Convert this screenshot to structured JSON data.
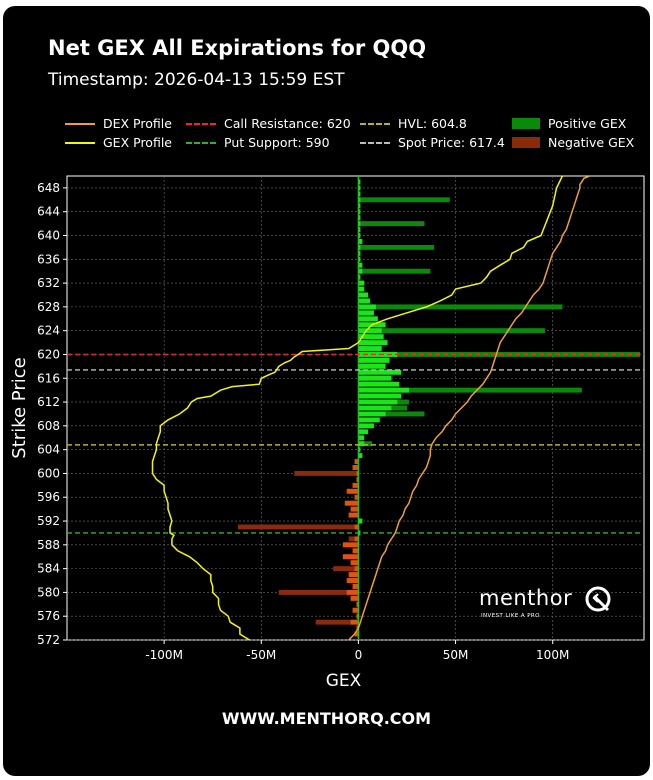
{
  "title": "Net GEX All Expirations for QQQ",
  "subtitle": "Timestamp: 2026-04-13 15:59 EST",
  "footer": "WWW.MENTHORQ.COM",
  "logo": {
    "word": "menthor",
    "tagline": "INVEST LIKE A PRO",
    "icon": "q-logo-icon"
  },
  "legend": [
    {
      "label": "DEX Profile",
      "kind": "line",
      "color": "#f0a030"
    },
    {
      "label": "GEX Profile",
      "kind": "line",
      "color": "#f5f50a"
    },
    {
      "label": "Call Resistance: 620",
      "kind": "dash",
      "color": "#ff2020"
    },
    {
      "label": "Put Support: 590",
      "kind": "dash",
      "color": "#2cb52c"
    },
    {
      "label": "HVL: 604.8",
      "kind": "dash",
      "color": "#b5b52a"
    },
    {
      "label": "Spot Price: 617.4",
      "kind": "dash",
      "color": "#bdbdbd"
    },
    {
      "label": "Positive GEX",
      "kind": "box",
      "color": "#0a8a0a"
    },
    {
      "label": "Negative GEX",
      "kind": "box",
      "color": "#8a2a0a"
    }
  ],
  "colors": {
    "positive_total": "#0a8a0a",
    "positive_near": "#19e619",
    "negative_total": "#8b2a0c",
    "negative_near": "#e0520e",
    "dex": "#f0a030",
    "gex": "#f5f50a"
  },
  "chart_data": {
    "type": "bar",
    "orientation": "horizontal",
    "xlabel": "GEX",
    "ylabel": "Strike Price",
    "xlim": [
      -150,
      147
    ],
    "ylim": [
      572,
      650
    ],
    "x_ticks": [
      -100,
      -50,
      0,
      50,
      100
    ],
    "x_tick_labels": [
      "-100M",
      "-50M",
      "0",
      "50M",
      "100M"
    ],
    "y_ticks": [
      572,
      576,
      580,
      584,
      588,
      592,
      596,
      600,
      604,
      608,
      612,
      616,
      620,
      624,
      628,
      632,
      636,
      640,
      644,
      648
    ],
    "grid": true,
    "lines": [
      {
        "label": "Call Resistance: 620",
        "value": 620,
        "color": "#ff2020"
      },
      {
        "label": "Put Support: 590",
        "value": 590,
        "color": "#2cb52c"
      },
      {
        "label": "HVL: 604.8",
        "value": 604.8,
        "color": "#b5b52a"
      },
      {
        "label": "Spot Price: 617.4",
        "value": 617.4,
        "color": "#bdbdbd"
      }
    ],
    "strikes": [
      573,
      574,
      575,
      576,
      577,
      578,
      579,
      580,
      581,
      582,
      583,
      584,
      585,
      586,
      587,
      588,
      589,
      590,
      591,
      592,
      593,
      594,
      595,
      596,
      597,
      598,
      599,
      600,
      601,
      602,
      603,
      604,
      605,
      606,
      607,
      608,
      609,
      610,
      611,
      612,
      613,
      614,
      615,
      616,
      617,
      618,
      619,
      620,
      621,
      622,
      623,
      624,
      625,
      626,
      627,
      628,
      629,
      630,
      631,
      632,
      633,
      634,
      635,
      636,
      637,
      638,
      639,
      640,
      641,
      642,
      643,
      644,
      645,
      646,
      647,
      648,
      649
    ],
    "total_gex": [
      -2,
      -1,
      -22,
      -1,
      -3,
      -1,
      -4,
      -41,
      -3,
      -6,
      -5,
      -13,
      -4,
      -8,
      -3,
      -8,
      -5,
      1,
      -62,
      2,
      -5,
      -4,
      -7,
      -2,
      -6,
      -3,
      -1,
      -33,
      -3,
      -2,
      2,
      1,
      7,
      1,
      3,
      4,
      3,
      34,
      25,
      26,
      5,
      115,
      4,
      5,
      4,
      3,
      2,
      145,
      4,
      5,
      6,
      96,
      5,
      6,
      5,
      105,
      6,
      5,
      3,
      3,
      1,
      37,
      2,
      1,
      1,
      39,
      2,
      1,
      1,
      34,
      1,
      1,
      1,
      47,
      1,
      1,
      1
    ],
    "near_gex": [
      -2,
      -1,
      -4,
      -1,
      -3,
      -1,
      -4,
      -6,
      -3,
      -6,
      -5,
      -2,
      -4,
      -8,
      -3,
      -8,
      -2,
      1,
      -2,
      2,
      -5,
      -4,
      -7,
      -2,
      -6,
      -3,
      -1,
      -1,
      -3,
      -2,
      2,
      1,
      3,
      3,
      5,
      8,
      11,
      14,
      17,
      20,
      22,
      26,
      21,
      17,
      22,
      14,
      16,
      20,
      12,
      15,
      13,
      12,
      14,
      10,
      8,
      9,
      6,
      5,
      3,
      3,
      1,
      2,
      2,
      1,
      1,
      1,
      2,
      1,
      1,
      1,
      1,
      1,
      1,
      1,
      1,
      1,
      1
    ],
    "gex_profile": {
      "x": [
        -56,
        -61,
        -61,
        -66,
        -67,
        -71,
        -72,
        -72,
        -75,
        -75,
        -76,
        -76,
        -80,
        -83,
        -87,
        -93,
        -96,
        -96,
        -95,
        -97,
        -97,
        -96,
        -97,
        -98,
        -98,
        -99,
        -100,
        -100,
        -104,
        -106,
        -106,
        -106,
        -105,
        -104,
        -104,
        -103,
        -102,
        -102,
        -98,
        -92,
        -88,
        -86,
        -83,
        -76,
        -71,
        -65,
        -51,
        -50,
        -46,
        -43,
        -41,
        -38,
        -35,
        -33,
        -31,
        -29,
        -5,
        0,
        2,
        4,
        7,
        15,
        25,
        35,
        42,
        48,
        50,
        63,
        66,
        68,
        73,
        78,
        79,
        85,
        87,
        94,
        100,
        102,
        105
      ],
      "y": [
        572,
        573,
        574,
        575,
        576,
        577,
        578,
        579,
        580,
        581,
        582,
        583,
        584,
        585,
        586,
        587,
        588,
        589,
        589.6,
        590,
        591,
        592,
        593,
        594,
        595,
        596,
        597,
        598,
        599,
        600,
        601,
        602,
        603,
        604,
        605,
        606,
        607,
        608,
        609,
        610,
        611,
        612,
        612.6,
        613,
        614,
        614.6,
        615,
        616,
        616.6,
        617,
        618,
        618.6,
        619,
        619.6,
        620,
        620.5,
        621,
        622,
        623,
        624,
        625,
        626,
        627,
        628,
        629,
        630,
        631,
        632,
        633,
        634,
        635,
        636,
        637,
        638,
        639,
        640,
        645,
        648,
        650
      ]
    },
    "dex_profile": {
      "x": [
        -5,
        -2,
        0,
        1,
        2,
        3,
        4,
        5,
        6,
        7,
        8,
        9,
        10,
        11,
        12,
        14,
        15,
        17,
        19,
        20,
        21,
        23,
        24,
        26,
        27,
        28,
        30,
        31,
        33,
        35,
        36,
        37,
        37,
        38,
        40,
        43,
        45,
        48,
        50,
        53,
        56,
        58,
        61,
        64,
        66,
        68,
        69,
        70,
        71,
        72,
        73,
        75,
        77,
        79,
        81,
        84,
        86,
        88,
        90,
        93,
        95,
        96,
        97,
        98,
        99,
        100,
        102,
        104,
        105,
        107,
        108,
        109,
        110,
        111,
        112,
        113,
        114,
        114,
        115,
        116,
        119
      ],
      "y": [
        572,
        573,
        574,
        575,
        576,
        577,
        578,
        579,
        580,
        581,
        582,
        583,
        584,
        585,
        586,
        587,
        588,
        589,
        590,
        591,
        592,
        593,
        594,
        595,
        596,
        597,
        598,
        599,
        600,
        601,
        602,
        603,
        604,
        605,
        606,
        607,
        608,
        609,
        610,
        611,
        612,
        613,
        614,
        615,
        616,
        617,
        618,
        619,
        620,
        621,
        622,
        623,
        624,
        625,
        626,
        627,
        628,
        629,
        630,
        631,
        632,
        633,
        634,
        635,
        636,
        637,
        638,
        639,
        640,
        641,
        642,
        643,
        644,
        645,
        646,
        647,
        648,
        648.6,
        649,
        649.6,
        650
      ]
    }
  }
}
